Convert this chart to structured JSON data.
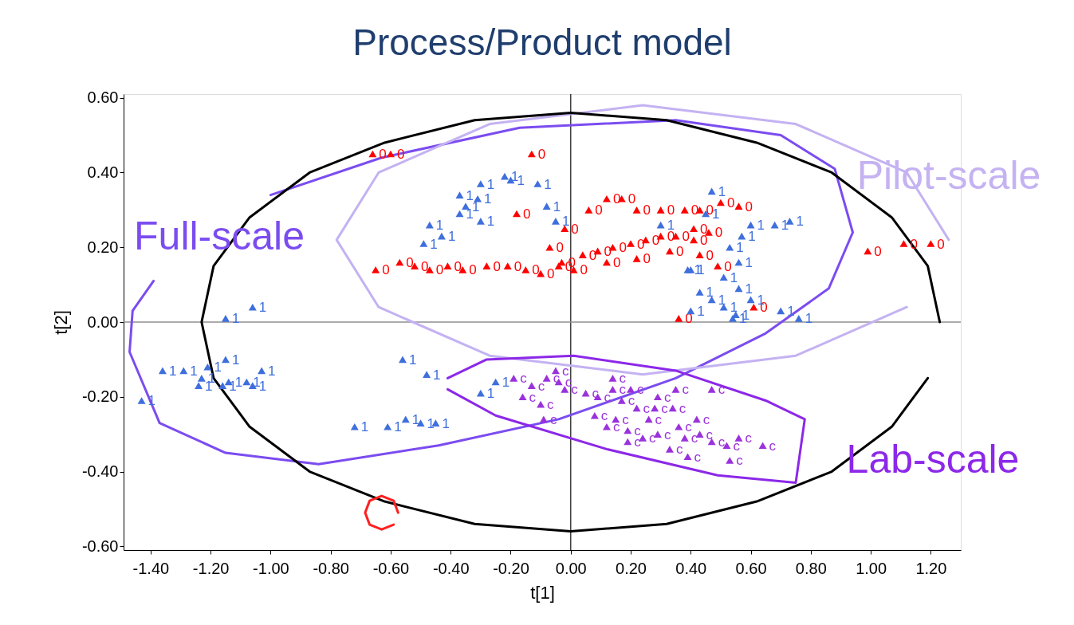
{
  "chart_data": {
    "type": "scatter",
    "title": "Process/Product model",
    "xlabel": "t[1]",
    "ylabel": "t[2]",
    "xlim": [
      -1.49,
      1.3
    ],
    "ylim": [
      -0.61,
      0.61
    ],
    "xticks": [
      {
        "value": -1.4,
        "label": "-1.40"
      },
      {
        "value": -1.2,
        "label": "-1.20"
      },
      {
        "value": -1.0,
        "label": "-1.00"
      },
      {
        "value": -0.8,
        "label": "-0.80"
      },
      {
        "value": -0.6,
        "label": "-0.60"
      },
      {
        "value": -0.4,
        "label": "-0.40"
      },
      {
        "value": -0.2,
        "label": "-0.20"
      },
      {
        "value": 0,
        "label": "0.00"
      },
      {
        "value": 0.2,
        "label": "0.20"
      },
      {
        "value": 0.4,
        "label": "0.40"
      },
      {
        "value": 0.6,
        "label": "0.60"
      },
      {
        "value": 0.8,
        "label": "0.80"
      },
      {
        "value": 1.0,
        "label": "1.00"
      },
      {
        "value": 1.2,
        "label": "1.20"
      }
    ],
    "yticks": [
      {
        "value": -0.6,
        "label": "-0.60"
      },
      {
        "value": -0.4,
        "label": "-0.40"
      },
      {
        "value": -0.2,
        "label": "-0.20"
      },
      {
        "value": 0,
        "label": "0.00"
      },
      {
        "value": 0.2,
        "label": "0.20"
      },
      {
        "value": 0.4,
        "label": "0.40"
      },
      {
        "value": 0.6,
        "label": "0.60"
      }
    ],
    "grid": false,
    "ref_lines": [
      {
        "axis": "x",
        "value": 0,
        "color": "#404040"
      },
      {
        "axis": "y",
        "value": 0,
        "color": "#909090"
      }
    ],
    "annotations": [
      "Full-scale",
      "Pilot-scale",
      "Lab-scale"
    ],
    "series": [
      {
        "type": "line",
        "color": "#7b4cf0",
        "x": [
          -1.39,
          -1.46,
          -1.47,
          -1.37,
          -1.15,
          -0.84,
          -0.44,
          -0.04,
          0.35,
          0.65,
          0.86,
          0.94,
          0.88,
          0.7,
          0.35,
          -0.17,
          -0.63,
          -1.0
        ],
        "values": [
          0.11,
          0.03,
          -0.08,
          -0.27,
          -0.35,
          -0.38,
          -0.33,
          -0.26,
          -0.15,
          -0.03,
          0.09,
          0.24,
          0.41,
          0.5,
          0.54,
          0.52,
          0.44,
          0.34
        ]
      },
      {
        "type": "line",
        "color": "#c4b2f2",
        "x": [
          1.26,
          1.12,
          0.75,
          0.24,
          -0.27,
          -0.64,
          -0.78,
          -0.64,
          -0.27,
          0.24,
          0.75,
          1.12
        ],
        "values": [
          0.22,
          0.4,
          0.53,
          0.58,
          0.53,
          0.4,
          0.22,
          0.04,
          -0.09,
          -0.14,
          -0.09,
          0.04
        ]
      },
      {
        "type": "line",
        "color": "#8c28e8",
        "x": [
          -0.41,
          -0.28,
          0.01,
          0.35,
          0.65,
          0.78,
          0.75,
          0.49,
          0.12,
          -0.25,
          -0.41
        ],
        "values": [
          -0.15,
          -0.1,
          -0.09,
          -0.13,
          -0.21,
          -0.26,
          -0.43,
          -0.41,
          -0.34,
          -0.25,
          -0.18
        ]
      },
      {
        "type": "line",
        "color": "#000000",
        "x": [
          1.23,
          1.19,
          1.07,
          0.87,
          0.62,
          0.32,
          0,
          -0.32,
          -0.62,
          -0.87,
          -1.07,
          -1.19,
          -1.23,
          -1.19,
          -1.07,
          -0.87,
          -0.62,
          -0.32,
          0,
          0.32,
          0.62,
          0.87,
          1.07,
          1.19
        ],
        "values": [
          0,
          0.15,
          0.28,
          0.4,
          0.48,
          0.54,
          0.56,
          0.54,
          0.48,
          0.4,
          0.28,
          0.15,
          0,
          -0.15,
          -0.28,
          -0.4,
          -0.48,
          -0.54,
          -0.56,
          -0.54,
          -0.48,
          -0.4,
          -0.28,
          -0.15
        ]
      },
      {
        "type": "line",
        "color": "#ff2020",
        "x": [
          -0.575,
          -0.59,
          -0.63,
          -0.67,
          -0.685,
          -0.67,
          -0.63,
          -0.59
        ],
        "values": [
          -0.51,
          -0.478,
          -0.465,
          -0.478,
          -0.51,
          -0.542,
          -0.555,
          -0.542
        ]
      },
      {
        "name": "0",
        "marker": "triangle",
        "color": "#ff0000",
        "x": [
          -0.66,
          -0.6,
          -0.13,
          -0.18,
          0.06,
          0.12,
          0.17,
          0.22,
          0.3,
          0.38,
          0.43,
          0.5,
          0.56,
          -0.65,
          -0.57,
          -0.52,
          -0.47,
          -0.41,
          -0.36,
          -0.28,
          -0.21,
          -0.15,
          -0.1,
          -0.04,
          0.04,
          0.09,
          0.14,
          0.2,
          0.25,
          0.3,
          0.35,
          0.41,
          0.46,
          -0.03,
          0.01,
          0.12,
          0.22,
          0.33,
          0.43,
          0.49,
          -0.07,
          -0.02,
          0.41,
          0.36,
          0.61,
          0.99,
          1.11,
          1.2
        ],
        "values": [
          0.45,
          0.45,
          0.45,
          0.29,
          0.3,
          0.33,
          0.33,
          0.3,
          0.3,
          0.3,
          0.3,
          0.32,
          0.31,
          0.14,
          0.16,
          0.15,
          0.14,
          0.15,
          0.14,
          0.15,
          0.15,
          0.14,
          0.13,
          0.15,
          0.18,
          0.19,
          0.2,
          0.21,
          0.22,
          0.23,
          0.23,
          0.22,
          0.24,
          0.16,
          0.14,
          0.16,
          0.17,
          0.19,
          0.18,
          0.15,
          0.2,
          0.25,
          0.25,
          0.01,
          0.04,
          0.19,
          0.21,
          0.21
        ]
      },
      {
        "name": "1",
        "marker": "triangle",
        "color": "#3f6fdc",
        "x": [
          -1.43,
          -1.36,
          -1.29,
          -1.23,
          -1.21,
          -1.15,
          -1.14,
          -1.08,
          -1.06,
          -1.03,
          -1.24,
          -1.16,
          -1.15,
          -1.06,
          -0.56,
          -0.48,
          -0.72,
          -0.61,
          -0.55,
          -0.5,
          -0.45,
          -0.47,
          -0.49,
          -0.43,
          -0.37,
          -0.35,
          -0.37,
          -0.31,
          -0.3,
          -0.3,
          -0.22,
          -0.2,
          -0.11,
          -0.08,
          -0.05,
          0.6,
          0.68,
          0.73,
          0.53,
          0.57,
          0.56,
          0.4,
          0.51,
          0.43,
          0.47,
          0.56,
          0.4,
          0.51,
          0.55,
          0.6,
          0.7,
          0.76,
          0.54,
          0.47,
          0.45,
          0.3,
          0.39,
          -0.3,
          -0.25
        ],
        "values": [
          -0.21,
          -0.13,
          -0.13,
          -0.15,
          -0.12,
          -0.1,
          -0.16,
          -0.16,
          -0.17,
          -0.13,
          -0.17,
          -0.17,
          0.01,
          0.04,
          -0.1,
          -0.14,
          -0.28,
          -0.28,
          -0.26,
          -0.27,
          -0.27,
          0.26,
          0.21,
          0.23,
          0.34,
          0.31,
          0.29,
          0.33,
          0.37,
          0.27,
          0.39,
          0.38,
          0.37,
          0.31,
          0.27,
          0.26,
          0.26,
          0.27,
          0.2,
          0.23,
          0.16,
          0.14,
          0.12,
          0.08,
          0.06,
          0.09,
          0.03,
          0.04,
          0.02,
          0.06,
          0.03,
          0.01,
          0.01,
          0.35,
          0.29,
          0.26,
          0.14,
          -0.19,
          -0.16
        ]
      },
      {
        "name": "c",
        "marker": "triangle",
        "color": "#9a32dc",
        "x": [
          -0.19,
          -0.08,
          -0.05,
          -0.04,
          -0.16,
          -0.13,
          -0.1,
          -0.09,
          -0.02,
          0.05,
          0.14,
          0.09,
          0.08,
          0.12,
          0.14,
          0.17,
          0.2,
          0.22,
          0.19,
          0.26,
          0.29,
          0.35,
          0.47,
          0.34,
          0.36,
          0.38,
          0.19,
          0.33,
          0.39,
          0.43,
          0.47,
          0.52,
          0.53,
          0.56,
          0.64,
          0.42,
          0.29,
          0.24,
          0.15,
          0.28
        ],
        "values": [
          -0.15,
          -0.15,
          -0.13,
          -0.16,
          -0.2,
          -0.17,
          -0.22,
          -0.26,
          -0.18,
          -0.19,
          -0.15,
          -0.2,
          -0.25,
          -0.28,
          -0.18,
          -0.21,
          -0.18,
          -0.23,
          -0.29,
          -0.26,
          -0.2,
          -0.18,
          -0.18,
          -0.23,
          -0.28,
          -0.31,
          -0.32,
          -0.34,
          -0.36,
          -0.3,
          -0.32,
          -0.33,
          -0.37,
          -0.31,
          -0.33,
          -0.26,
          -0.3,
          -0.31,
          -0.26,
          -0.23
        ]
      }
    ]
  }
}
